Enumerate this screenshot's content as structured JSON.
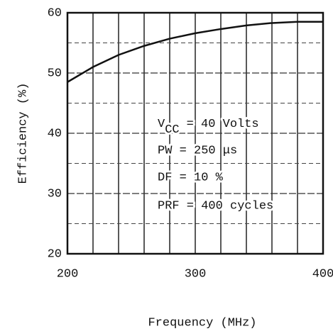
{
  "chart_data": {
    "type": "line",
    "x_label": "Frequency (MHz)",
    "y_label": "Efficiency (%)",
    "x": [
      200,
      220,
      240,
      260,
      280,
      300,
      320,
      340,
      360,
      380,
      400
    ],
    "series": [
      {
        "name": "Efficiency",
        "color": "#111111",
        "values": [
          48.5,
          51,
          53,
          54.5,
          55.7,
          56.6,
          57.3,
          57.9,
          58.3,
          58.5,
          58.5
        ]
      }
    ],
    "xlim": [
      200,
      400
    ],
    "xticks": [
      200,
      300,
      400
    ],
    "x_minor_ticks": [
      220,
      240,
      260,
      280,
      320,
      340,
      360,
      380
    ],
    "ylim": [
      20,
      60
    ],
    "yticks": [
      20,
      30,
      40,
      50,
      60
    ],
    "y_minor_ticks": [
      25,
      35,
      45,
      55
    ],
    "grid": true,
    "annotations": [
      {
        "symbol": "V",
        "subscript": "CC",
        "text": "= 40 Volts"
      },
      {
        "text": "PW = 250 μs"
      },
      {
        "text": "DF = 10 %"
      },
      {
        "text": "PRF = 400 cycles"
      }
    ]
  }
}
